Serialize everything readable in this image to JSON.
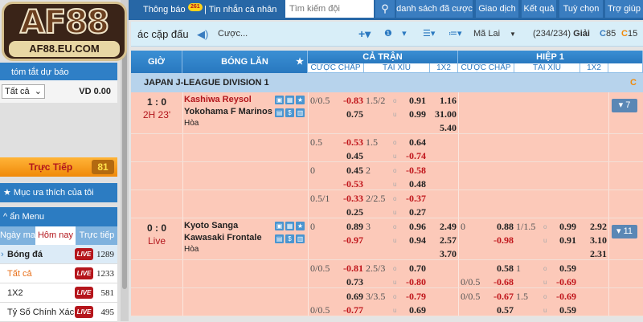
{
  "logo": {
    "text_main": "AF88",
    "text_domain": "AF88.EU.COM"
  },
  "topbar": {
    "notifications_label": "Thông báo",
    "notifications_count": "261",
    "messages_label": "| Tin nhắn cá nhân",
    "search_placeholder": "Tìm kiếm đội",
    "buttons": [
      "danh sách đã cược",
      "Giao dịch",
      "Kết quả",
      "Tuỳ chọn",
      "Trợ giúp"
    ]
  },
  "toolbar": {
    "title": "ác cặp đấu",
    "bet_label": "Cược...",
    "odds_type": "Mã Lai",
    "league_count": "(234/234)",
    "league_label": "Giải",
    "refresh1": "85",
    "refresh2": "15"
  },
  "sidebar": {
    "summary_label": "tóm tắt dự báo",
    "filter_value": "Tất cả",
    "balance": "VD 0.00",
    "live_label": "Trực Tiếp",
    "live_count": "81",
    "favorites_label": "Mục ưa thích của tôi",
    "hide_menu_label": "ẩn Menu",
    "tabs": [
      "Ngày mai",
      "Hôm nay",
      "Trực tiếp"
    ],
    "active_tab": "Hôm nay",
    "live_badge": "LIVE",
    "items": [
      {
        "label": "Bóng đá",
        "count": "1289"
      },
      {
        "label": "Tất cả",
        "count": "1233"
      },
      {
        "label": "1X2",
        "count": "581"
      },
      {
        "label": "Tỷ Số Chính Xác",
        "count": "495"
      }
    ]
  },
  "table": {
    "headers": {
      "time": "GIỜ",
      "match": "BÓNG LĂN",
      "full_time": "CẢ TRẬN",
      "first_half": "HIỆP 1",
      "handicap": "CƯỢC CHẤP",
      "over_under": "TÀI XỈU",
      "x12": "1X2"
    },
    "league": "JAPAN J-LEAGUE DIVISION 1",
    "matches": [
      {
        "score": "1 : 0",
        "time": "2H 23'",
        "home": "Kashiwa Reysol",
        "away": "Yokohama F Marinos",
        "draw": "Hòa",
        "more": "▾ 7",
        "rows": [
          {
            "ft": {
              "hdp": [
                [
                  "0/0.5",
                  "-0.83"
                ],
                [
                  "",
                  "0.75"
                ]
              ],
              "ou": [
                [
                  "1.5/2",
                  "o",
                  "0.91"
                ],
                [
                  "",
                  "u",
                  "0.99"
                ]
              ],
              "x12": [
                "1.16",
                "31.00",
                "5.40"
              ]
            }
          },
          {
            "ft": {
              "hdp": [
                [
                  "0.5",
                  "-0.53"
                ],
                [
                  "",
                  "0.45"
                ]
              ],
              "ou": [
                [
                  "1.5",
                  "o",
                  "0.64"
                ],
                [
                  "",
                  "u",
                  "-0.74"
                ]
              ]
            }
          },
          {
            "ft": {
              "hdp": [
                [
                  "0",
                  "0.45"
                ],
                [
                  "",
                  "-0.53"
                ]
              ],
              "ou": [
                [
                  "2",
                  "o",
                  "-0.58"
                ],
                [
                  "",
                  "u",
                  "0.48"
                ]
              ]
            }
          },
          {
            "ft": {
              "hdp": [
                [
                  "0.5/1",
                  "-0.33"
                ],
                [
                  "",
                  "0.25"
                ]
              ],
              "ou": [
                [
                  "2/2.5",
                  "o",
                  "-0.37"
                ],
                [
                  "",
                  "u",
                  "0.27"
                ]
              ]
            }
          }
        ]
      },
      {
        "score": "0 : 0",
        "time": "Live",
        "home": "Kyoto Sanga",
        "away": "Kawasaki Frontale",
        "draw": "Hòa",
        "more": "▾ 11",
        "rows": [
          {
            "ft": {
              "hdp": [
                [
                  "0",
                  "0.89"
                ],
                [
                  "",
                  "-0.97"
                ]
              ],
              "ou": [
                [
                  "3",
                  "o",
                  "0.96"
                ],
                [
                  "",
                  "u",
                  "0.94"
                ]
              ],
              "x12": [
                "2.49",
                "2.57",
                "3.70"
              ]
            },
            "h1": {
              "hdp": [
                [
                  "0",
                  "0.88"
                ],
                [
                  "",
                  "-0.98"
                ]
              ],
              "ou": [
                [
                  "1/1.5",
                  "o",
                  "0.99"
                ],
                [
                  "",
                  "u",
                  "0.91"
                ]
              ],
              "x12": [
                "2.92",
                "3.10",
                "2.31"
              ]
            }
          },
          {
            "ft": {
              "hdp": [
                [
                  "0/0.5",
                  "-0.81"
                ],
                [
                  "",
                  "0.73"
                ]
              ],
              "ou": [
                [
                  "2.5/3",
                  "o",
                  "0.70"
                ],
                [
                  "",
                  "u",
                  "-0.80"
                ]
              ]
            },
            "h1": {
              "hdp": [
                [
                  "",
                  "0.58"
                ],
                [
                  "0/0.5",
                  "-0.68"
                ]
              ],
              "ou": [
                [
                  "1",
                  "o",
                  "0.59"
                ],
                [
                  "",
                  "u",
                  "-0.69"
                ]
              ]
            }
          },
          {
            "ft": {
              "hdp": [
                [
                  "",
                  "0.69"
                ],
                [
                  "0/0.5",
                  "-0.77"
                ]
              ],
              "ou": [
                [
                  "3/3.5",
                  "o",
                  "-0.79"
                ],
                [
                  "",
                  "u",
                  "0.69"
                ]
              ]
            },
            "h1": {
              "hdp": [
                [
                  "0/0.5",
                  "-0.67"
                ],
                [
                  "",
                  "0.57"
                ]
              ],
              "ou": [
                [
                  "1.5",
                  "o",
                  "-0.69"
                ],
                [
                  "",
                  "u",
                  "0.59"
                ]
              ]
            }
          }
        ]
      }
    ]
  },
  "colors": {
    "brand_blue": "#2767a6",
    "row_bg": "#fcc9b9",
    "negative": "#c0151b",
    "live_orange": "#f59a16"
  }
}
